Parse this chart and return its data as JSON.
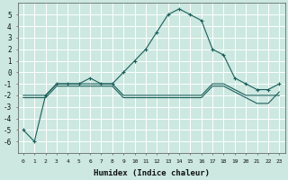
{
  "title": "",
  "xlabel": "Humidex (Indice chaleur)",
  "ylabel": "",
  "bg_color": "#cce8e0",
  "line_color": "#1a5e5a",
  "grid_color": "#ffffff",
  "x_values": [
    0,
    1,
    2,
    3,
    4,
    5,
    6,
    7,
    8,
    9,
    10,
    11,
    12,
    13,
    14,
    15,
    16,
    17,
    18,
    19,
    20,
    21,
    22,
    23
  ],
  "series1": [
    -5,
    -6,
    -2,
    -1,
    -1,
    -1,
    -0.5,
    -1,
    -1,
    0,
    1,
    2,
    3.5,
    5,
    5.5,
    5,
    4.5,
    2,
    1.5,
    -0.5,
    -1,
    -1.5,
    -1.5,
    -1
  ],
  "series2": [
    -2,
    -2,
    -2,
    -1,
    -1,
    -1,
    -1,
    -1,
    -1,
    -2,
    -2,
    -2,
    -2,
    -2,
    -2,
    -2,
    -2,
    -1,
    -1,
    -1.5,
    -2,
    -2,
    -2,
    -2
  ],
  "series3": [
    -2.2,
    -2.2,
    -2.2,
    -1.2,
    -1.2,
    -1.2,
    -1.2,
    -1.2,
    -1.2,
    -2.2,
    -2.2,
    -2.2,
    -2.2,
    -2.2,
    -2.2,
    -2.2,
    -2.2,
    -1.2,
    -1.2,
    -1.7,
    -2.2,
    -2.7,
    -2.7,
    -1.7
  ],
  "xlim": [
    -0.5,
    23.5
  ],
  "ylim": [
    -7,
    6
  ],
  "yticks": [
    -6,
    -5,
    -4,
    -3,
    -2,
    -1,
    0,
    1,
    2,
    3,
    4,
    5
  ],
  "xticks": [
    0,
    1,
    2,
    3,
    4,
    5,
    6,
    7,
    8,
    9,
    10,
    11,
    12,
    13,
    14,
    15,
    16,
    17,
    18,
    19,
    20,
    21,
    22,
    23
  ]
}
